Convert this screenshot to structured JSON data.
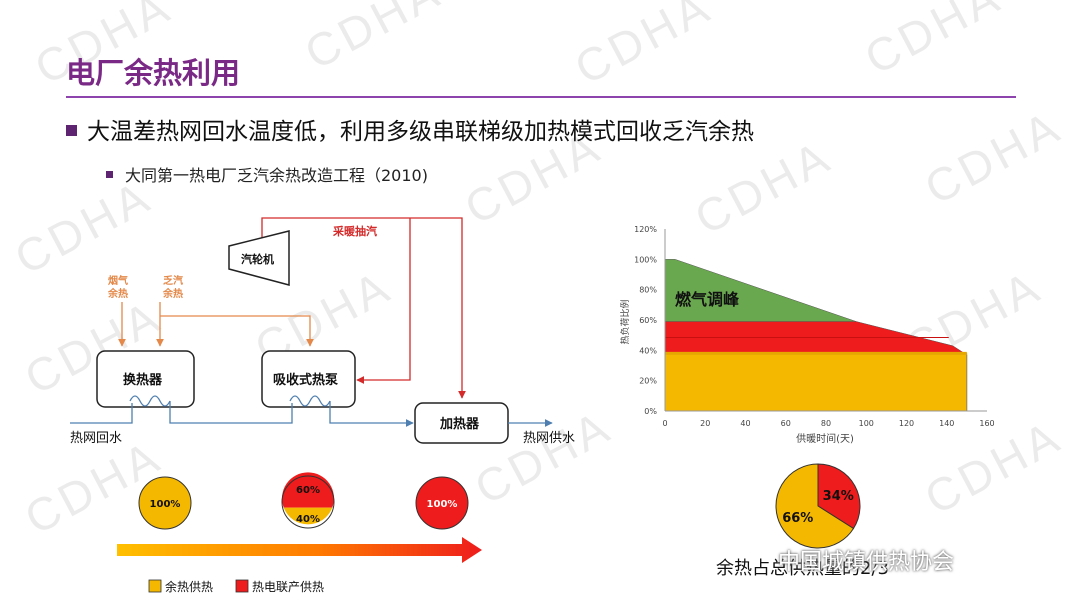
{
  "title": "电厂余热利用",
  "bullet1": "大温差热网回水温度低，利用多级串联梯级加热模式回收乏汽余热",
  "bullet2": "大同第一热电厂乏汽余热改造工程（2010)",
  "watermark": "CDHA",
  "diagram": {
    "turbine": "汽轮机",
    "extraction": "采暖抽汽",
    "flue_gas_1": "烟气",
    "flue_gas_2": "余热",
    "exhaust_steam_1": "乏汽",
    "exhaust_steam_2": "余热",
    "exchanger": "换热器",
    "absorption_pump": "吸收式热泵",
    "heater": "加热器",
    "return_water": "热网回水",
    "supply_water": "热网供水",
    "circle1": "100%",
    "circle2_top": "60%",
    "circle2_bottom": "40%",
    "circle3": "100%",
    "legend_waste": "余热供热",
    "legend_chp": "热电联产供热"
  },
  "colors": {
    "purple": "#7a2a86",
    "orange_line": "#e4894a",
    "red_line": "#d42a2a",
    "blue_line": "#4f7fb0",
    "yellow": "#f5b800",
    "red": "#ee1c1c",
    "green": "#6aa84f"
  },
  "chart_data": {
    "type": "area",
    "xlabel": "供暖时间(天)",
    "ylabel": "热负荷比例",
    "xlim": [
      0,
      160
    ],
    "ylim": [
      0,
      1.2
    ],
    "xticks": [
      "0",
      "20",
      "40",
      "60",
      "80",
      "100",
      "120",
      "140",
      "160"
    ],
    "yticks": [
      "0%",
      "20%",
      "40%",
      "60%",
      "80%",
      "100%",
      "120%"
    ],
    "annotation": "燃气调峰",
    "series": [
      {
        "color": "#f5b800",
        "points": [
          [
            0,
            0.37
          ],
          [
            150,
            0.37
          ],
          [
            150,
            0
          ]
        ]
      },
      {
        "color": "#ee1c1c",
        "points": [
          [
            0,
            0.59
          ],
          [
            95,
            0.59
          ],
          [
            143,
            0.43
          ],
          [
            150,
            0.37
          ]
        ]
      },
      {
        "color": "#6aa84f",
        "points": [
          [
            0,
            1.0
          ],
          [
            5,
            1.0
          ],
          [
            95,
            0.59
          ]
        ]
      }
    ],
    "pie": {
      "slices": [
        {
          "label": "66%",
          "value": 66,
          "color": "#f5b800"
        },
        {
          "label": "34%",
          "value": 34,
          "color": "#ee1c1c"
        }
      ]
    },
    "caption": "余热占总供热量的2/3"
  },
  "brand": "中国城镇供热协会"
}
